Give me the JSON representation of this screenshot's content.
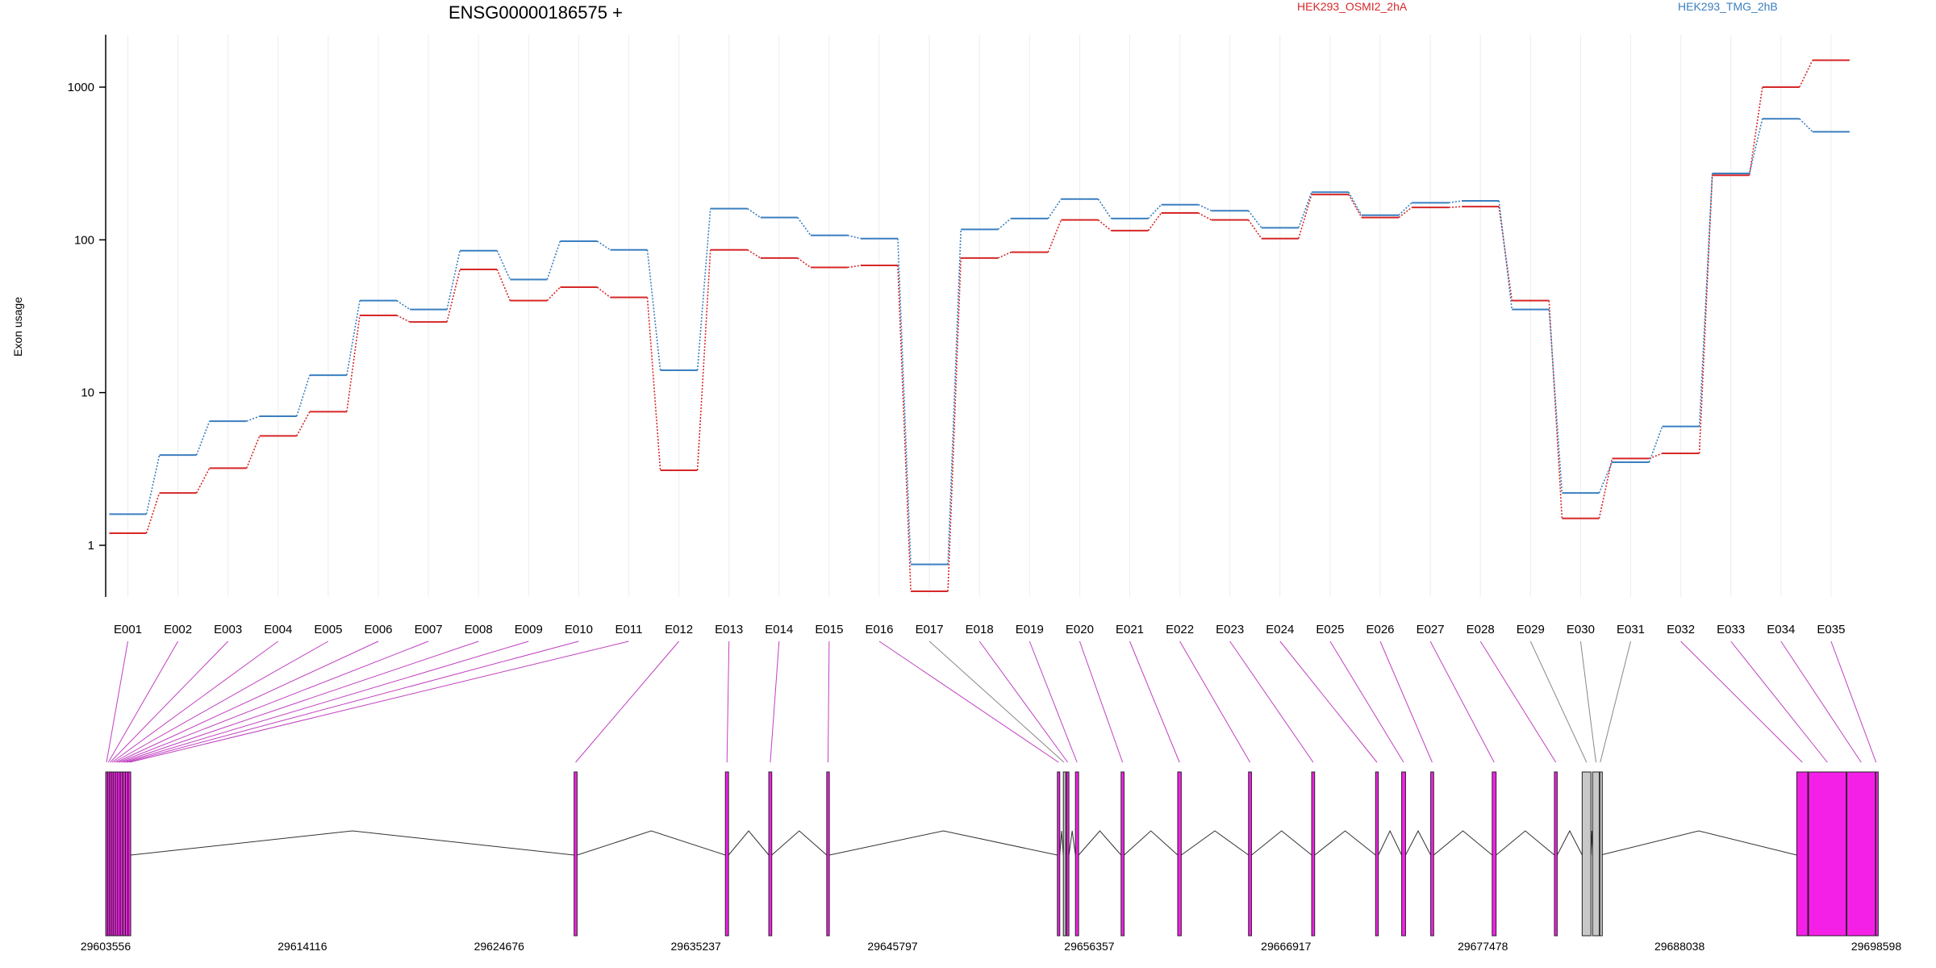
{
  "chart_data": {
    "type": "line",
    "title": "ENSG00000186575 +",
    "ylabel": "Exon usage",
    "y_scale": "log",
    "ylim": [
      0.5,
      2000
    ],
    "y_ticks": [
      "1",
      "10",
      "100",
      "1000"
    ],
    "categories": [
      "E001",
      "E002",
      "E003",
      "E004",
      "E005",
      "E006",
      "E007",
      "E008",
      "E009",
      "E010",
      "E011",
      "E012",
      "E013",
      "E014",
      "E015",
      "E016",
      "E017",
      "E018",
      "E019",
      "E020",
      "E021",
      "E022",
      "E023",
      "E024",
      "E025",
      "E026",
      "E027",
      "E028",
      "E029",
      "E030",
      "E031",
      "E032",
      "E033",
      "E034",
      "E035"
    ],
    "series": [
      {
        "name": "HEK293_OSMI2_2hA",
        "color": "#d62728",
        "values": [
          1.2,
          2.2,
          3.2,
          5.2,
          7.5,
          32,
          29,
          64,
          40,
          49,
          42,
          3.1,
          86,
          76,
          66,
          68,
          0.5,
          76,
          83,
          135,
          115,
          150,
          135,
          102,
          198,
          140,
          163,
          165,
          40,
          1.5,
          3.7,
          4.0,
          265,
          1000,
          1500
        ]
      },
      {
        "name": "HEK293_TMG_2hB",
        "color": "#3a7fc0",
        "values": [
          1.6,
          3.9,
          6.5,
          7.0,
          13,
          40,
          35,
          85,
          55,
          98,
          86,
          14,
          160,
          140,
          107,
          102,
          0.75,
          117,
          138,
          185,
          138,
          170,
          155,
          120,
          205,
          145,
          175,
          180,
          35,
          2.2,
          3.5,
          6.0,
          272,
          620,
          510
        ]
      }
    ],
    "gene_model": {
      "coordinates": [
        "29603556",
        "29614116",
        "29624676",
        "29635237",
        "29645797",
        "29656357",
        "29666917",
        "29677478",
        "29688038",
        "29698598"
      ],
      "exon_color": "#f520e8",
      "excluded_color": "#c8c8c8",
      "exons": [
        {
          "start": 29603560,
          "end": 29603640,
          "tested": true
        },
        {
          "start": 29603660,
          "end": 29603740,
          "tested": true
        },
        {
          "start": 29603760,
          "end": 29603840,
          "tested": true
        },
        {
          "start": 29603860,
          "end": 29603940,
          "tested": true
        },
        {
          "start": 29603960,
          "end": 29604060,
          "tested": true
        },
        {
          "start": 29604080,
          "end": 29604180,
          "tested": true
        },
        {
          "start": 29604200,
          "end": 29604320,
          "tested": true
        },
        {
          "start": 29604340,
          "end": 29604460,
          "tested": true
        },
        {
          "start": 29604480,
          "end": 29604600,
          "tested": true
        },
        {
          "start": 29604620,
          "end": 29604740,
          "tested": true
        },
        {
          "start": 29604760,
          "end": 29604900,
          "tested": true
        },
        {
          "start": 29628700,
          "end": 29628860,
          "tested": true
        },
        {
          "start": 29636820,
          "end": 29636990,
          "tested": true
        },
        {
          "start": 29639150,
          "end": 29639310,
          "tested": true
        },
        {
          "start": 29642260,
          "end": 29642400,
          "tested": true
        },
        {
          "start": 29654640,
          "end": 29654770,
          "tested": true
        },
        {
          "start": 29654960,
          "end": 29655030,
          "tested": false
        },
        {
          "start": 29655130,
          "end": 29655260,
          "tested": true
        },
        {
          "start": 29655610,
          "end": 29655780,
          "tested": true
        },
        {
          "start": 29658060,
          "end": 29658220,
          "tested": true
        },
        {
          "start": 29661100,
          "end": 29661290,
          "tested": true
        },
        {
          "start": 29664900,
          "end": 29665060,
          "tested": true
        },
        {
          "start": 29668290,
          "end": 29668450,
          "tested": true
        },
        {
          "start": 29671720,
          "end": 29671870,
          "tested": true
        },
        {
          "start": 29673120,
          "end": 29673330,
          "tested": true
        },
        {
          "start": 29674680,
          "end": 29674840,
          "tested": true
        },
        {
          "start": 29677980,
          "end": 29678190,
          "tested": true
        },
        {
          "start": 29681320,
          "end": 29681470,
          "tested": true
        },
        {
          "start": 29682810,
          "end": 29683280,
          "tested": false
        },
        {
          "start": 29683370,
          "end": 29683730,
          "tested": false
        },
        {
          "start": 29683760,
          "end": 29683800,
          "tested": false
        },
        {
          "start": 29694330,
          "end": 29694920,
          "tested": true
        },
        {
          "start": 29694960,
          "end": 29696980,
          "tested": true
        },
        {
          "start": 29697020,
          "end": 29698550,
          "tested": true
        },
        {
          "start": 29698570,
          "end": 29698598,
          "tested": true
        }
      ]
    }
  }
}
